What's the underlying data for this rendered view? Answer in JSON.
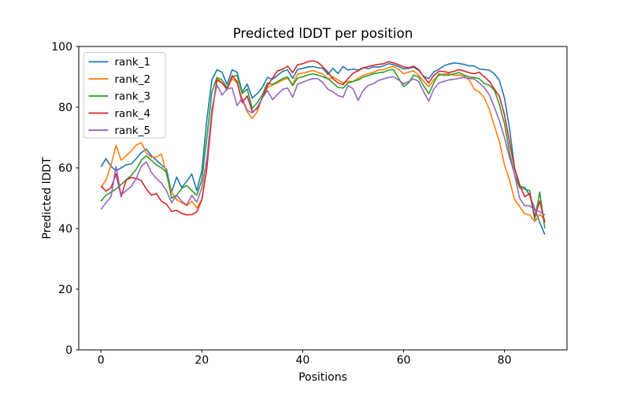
{
  "chart_data": {
    "type": "line",
    "title": "Predicted lDDT per position",
    "xlabel": "Positions",
    "ylabel": "Predicted lDDT",
    "xlim": [
      -4.4,
      92.4
    ],
    "ylim": [
      0,
      100
    ],
    "xticks": [
      0,
      20,
      40,
      60,
      80
    ],
    "yticks": [
      0,
      20,
      40,
      60,
      80,
      100
    ],
    "grid": false,
    "legend_position": "upper left",
    "positions": [
      0,
      1,
      2,
      3,
      4,
      5,
      6,
      7,
      8,
      9,
      10,
      11,
      12,
      13,
      14,
      15,
      16,
      17,
      18,
      19,
      20,
      21,
      22,
      23,
      24,
      25,
      26,
      27,
      28,
      29,
      30,
      31,
      32,
      33,
      34,
      35,
      36,
      37,
      38,
      39,
      40,
      41,
      42,
      43,
      44,
      45,
      46,
      47,
      48,
      49,
      50,
      51,
      52,
      53,
      54,
      55,
      56,
      57,
      58,
      59,
      60,
      61,
      62,
      63,
      64,
      65,
      66,
      67,
      68,
      69,
      70,
      71,
      72,
      73,
      74,
      75,
      76,
      77,
      78,
      79,
      80,
      81,
      82,
      83,
      84,
      85,
      86,
      87,
      88
    ],
    "series": [
      {
        "name": "rank_1",
        "color": "#1f77b4",
        "values": [
          60.3,
          63,
          60.5,
          59,
          60,
          61,
          61.3,
          63,
          65,
          66.2,
          64,
          62.5,
          61,
          59.5,
          52,
          57,
          53.5,
          55.5,
          58,
          52.5,
          59,
          76,
          89,
          92.3,
          91.5,
          87.5,
          92.3,
          91.5,
          85,
          87.6,
          83,
          84.5,
          86.5,
          89.8,
          89.2,
          90.5,
          91.8,
          92.3,
          89.5,
          92.5,
          92.8,
          93.2,
          93.4,
          93,
          92.8,
          90.8,
          92.8,
          91.1,
          93.4,
          92.2,
          92.6,
          92.2,
          93,
          92.7,
          93.3,
          93.2,
          93.6,
          94.3,
          94,
          93.4,
          92.6,
          92.8,
          93.2,
          92.1,
          90.1,
          89.4,
          91.6,
          92.5,
          93.6,
          94.2,
          94.6,
          94.4,
          94.1,
          93.6,
          93.6,
          92.6,
          92.4,
          92.2,
          91,
          88.8,
          83,
          73,
          60,
          54,
          53.5,
          51,
          46.5,
          42,
          38
        ]
      },
      {
        "name": "rank_2",
        "color": "#ff7f0e",
        "values": [
          53.5,
          56,
          61,
          67.5,
          62.5,
          64,
          65.5,
          67.5,
          68.3,
          65,
          63.5,
          63.5,
          64.5,
          58,
          52,
          49.5,
          48.5,
          47.5,
          49,
          46.8,
          49.5,
          60,
          77,
          89.5,
          88,
          86,
          89.4,
          88,
          82.5,
          78.5,
          76.3,
          78.5,
          83.5,
          86.4,
          87.3,
          88,
          88.9,
          89.5,
          87.5,
          90.9,
          91.2,
          91.6,
          92.1,
          91.5,
          90.9,
          89.2,
          90,
          89,
          88,
          88.5,
          88.5,
          89.5,
          90.5,
          91,
          91.5,
          92.2,
          92.4,
          93,
          93.4,
          92.5,
          91,
          91.5,
          92,
          90.5,
          88.5,
          86.8,
          89,
          90.5,
          91,
          91,
          90.5,
          90.6,
          90.2,
          89,
          86,
          85,
          83.1,
          79.2,
          73.8,
          68.6,
          61,
          56,
          49.5,
          47.3,
          44.8,
          44.5,
          42.3,
          44.6,
          43
        ]
      },
      {
        "name": "rank_3",
        "color": "#2ca02c",
        "values": [
          49,
          51,
          52,
          53,
          54.5,
          56,
          57.5,
          59.5,
          62.5,
          64,
          62.5,
          61,
          60,
          58.5,
          50,
          51,
          53.2,
          54.2,
          52.5,
          51,
          56,
          70,
          85,
          89.8,
          89,
          86.4,
          90,
          90.5,
          84.5,
          86,
          79.5,
          81.5,
          84,
          88,
          87.5,
          88.4,
          89.4,
          90,
          87.1,
          89.6,
          90,
          90.6,
          91,
          90.6,
          90,
          89.4,
          88,
          86.5,
          86.3,
          88,
          88.5,
          89,
          89.9,
          90.4,
          91,
          91.3,
          91.5,
          92.2,
          92.4,
          89.5,
          86.8,
          88,
          90.6,
          89.9,
          87,
          84.4,
          88,
          91,
          90.5,
          90.6,
          91,
          91.4,
          90.6,
          90,
          89.8,
          89.4,
          87.8,
          87.2,
          85.6,
          80.8,
          74.6,
          65.1,
          57.8,
          53.4,
          53,
          52.5,
          43,
          52,
          40
        ]
      },
      {
        "name": "rank_4",
        "color": "#d62728",
        "values": [
          54,
          52.3,
          53.5,
          58,
          50.5,
          56,
          56.8,
          56.5,
          55.8,
          53,
          51,
          51.5,
          49,
          48,
          45.6,
          46,
          45,
          44.5,
          44.6,
          45.5,
          49.5,
          60,
          78,
          89,
          88,
          85.8,
          90.4,
          88.5,
          81.5,
          83.7,
          78.5,
          79.5,
          83,
          87,
          89.5,
          92,
          92.5,
          93.5,
          91.4,
          94,
          94.3,
          95,
          95.3,
          94.8,
          93.3,
          91.5,
          89.4,
          88,
          87.4,
          89.5,
          91.2,
          92,
          92.9,
          93.4,
          93.8,
          94.1,
          94.3,
          95,
          94.6,
          94,
          93.3,
          93,
          93.5,
          92.4,
          90,
          88,
          90.5,
          91.8,
          91.8,
          91.4,
          91.8,
          92.4,
          91.9,
          91.4,
          91,
          91.5,
          90,
          88.5,
          86,
          83.5,
          77.5,
          68.5,
          60,
          54.5,
          50.5,
          51.5,
          44,
          49,
          42
        ]
      },
      {
        "name": "rank_5",
        "color": "#9467bd",
        "values": [
          46.3,
          48.5,
          50.5,
          60.5,
          51,
          52.5,
          53.8,
          56.5,
          60.5,
          62,
          58.5,
          56.5,
          55,
          52.5,
          48.5,
          51,
          49,
          47.8,
          50.9,
          48.7,
          53.4,
          63,
          79.4,
          87.3,
          84,
          86,
          86.4,
          80.5,
          83,
          79,
          78.1,
          80,
          83,
          85.5,
          82.5,
          84.2,
          85.9,
          86.3,
          83.3,
          87.6,
          88.2,
          88.9,
          89.4,
          89.4,
          88.1,
          85.9,
          85.1,
          83.8,
          83.3,
          87.2,
          86,
          82.2,
          85.5,
          87.2,
          87.7,
          88.8,
          89.3,
          89.8,
          90,
          89,
          87.7,
          88.5,
          89.3,
          88.5,
          85,
          82,
          86,
          88,
          88.5,
          89,
          89.2,
          89.5,
          89.8,
          89.5,
          89.3,
          88,
          86.5,
          84,
          80,
          75.5,
          70,
          63.5,
          57.8,
          50,
          47.5,
          47.5,
          46,
          45.5,
          44.5
        ]
      }
    ]
  }
}
